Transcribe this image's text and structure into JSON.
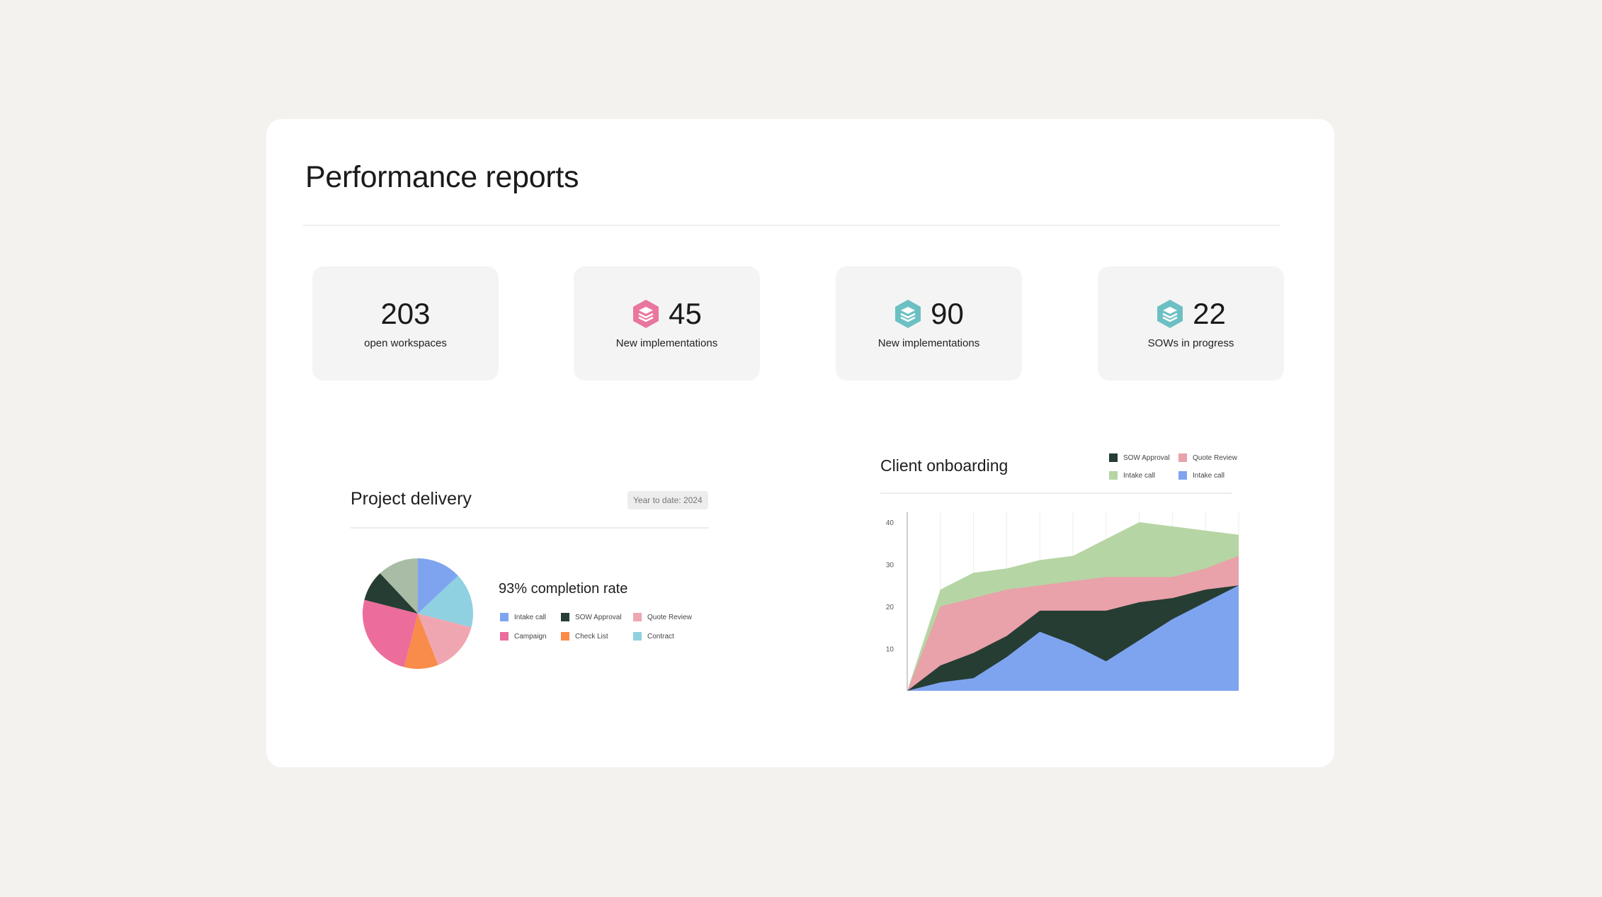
{
  "page": {
    "title": "Performance reports"
  },
  "stats": [
    {
      "value": "203",
      "label": "open workspaces",
      "icon": null
    },
    {
      "value": "45",
      "label": "New implementations",
      "icon": "pink-layers-hex-icon",
      "color": "#e8769e"
    },
    {
      "value": "90",
      "label": "New implementations",
      "icon": "teal-layers-hex-icon",
      "color": "#6cc0c4"
    },
    {
      "value": "22",
      "label": "SOWs in progress",
      "icon": "teal-layers-hex-icon",
      "color": "#6cc0c4"
    }
  ],
  "project_delivery": {
    "title": "Project delivery",
    "badge": "Year to date: 2024",
    "completion": "93% completion rate",
    "legend": [
      {
        "label": "Intake call",
        "color": "#7fa4ef"
      },
      {
        "label": "SOW Approval",
        "color": "#263d33"
      },
      {
        "label": "Quote Review",
        "color": "#f0a6b1"
      },
      {
        "label": "Campaign",
        "color": "#ec6d9b"
      },
      {
        "label": "Check List",
        "color": "#f98c4a"
      },
      {
        "label": "Contract",
        "color": "#8fd1e1"
      }
    ]
  },
  "client_onboarding": {
    "title": "Client onboarding",
    "legend": [
      {
        "label": "SOW Approval",
        "color": "#263d33"
      },
      {
        "label": "Quote Review",
        "color": "#e9a1aa"
      },
      {
        "label": "Intake call",
        "color": "#b6d5a4"
      },
      {
        "label": "Intake call",
        "color": "#7fa4ef"
      }
    ]
  },
  "chart_data": [
    {
      "type": "pie",
      "title": "",
      "slices": [
        {
          "label": "Intake call",
          "value": 13,
          "color": "#7fa4ef"
        },
        {
          "label": "Contract",
          "value": 16,
          "color": "#8fd1e1"
        },
        {
          "label": "Quote Review",
          "value": 15,
          "color": "#f0a6b1"
        },
        {
          "label": "Check List",
          "value": 10,
          "color": "#f98c4a"
        },
        {
          "label": "Campaign",
          "value": 25,
          "color": "#ec6d9b"
        },
        {
          "label": "SOW Approval",
          "value": 9,
          "color": "#263d33"
        },
        {
          "label": "Unlabeled",
          "value": 12,
          "color": "#a9bca6"
        }
      ]
    },
    {
      "type": "area",
      "title": "Client onboarding",
      "xlabel": "",
      "ylabel": "",
      "x": [
        0,
        1,
        2,
        3,
        4,
        5,
        6,
        7,
        8,
        9,
        10
      ],
      "yticks": [
        10,
        20,
        30,
        40
      ],
      "ylim": [
        0,
        41
      ],
      "series": [
        {
          "name": "Intake call",
          "color": "#b6d5a4",
          "values": [
            0,
            24,
            28,
            29,
            31,
            32,
            36,
            40,
            39,
            38,
            37
          ]
        },
        {
          "name": "Quote Review",
          "color": "#e9a1aa",
          "values": [
            0,
            20,
            22,
            24,
            25,
            26,
            27,
            27,
            27,
            29,
            32
          ]
        },
        {
          "name": "SOW Approval",
          "color": "#263d33",
          "values": [
            0,
            6,
            9,
            13,
            19,
            19,
            19,
            21,
            22,
            24,
            25
          ]
        },
        {
          "name": "Intake call",
          "color": "#7fa4ef",
          "values": [
            0,
            2,
            3,
            8,
            14,
            11,
            7,
            12,
            17,
            21,
            25
          ]
        }
      ]
    }
  ]
}
